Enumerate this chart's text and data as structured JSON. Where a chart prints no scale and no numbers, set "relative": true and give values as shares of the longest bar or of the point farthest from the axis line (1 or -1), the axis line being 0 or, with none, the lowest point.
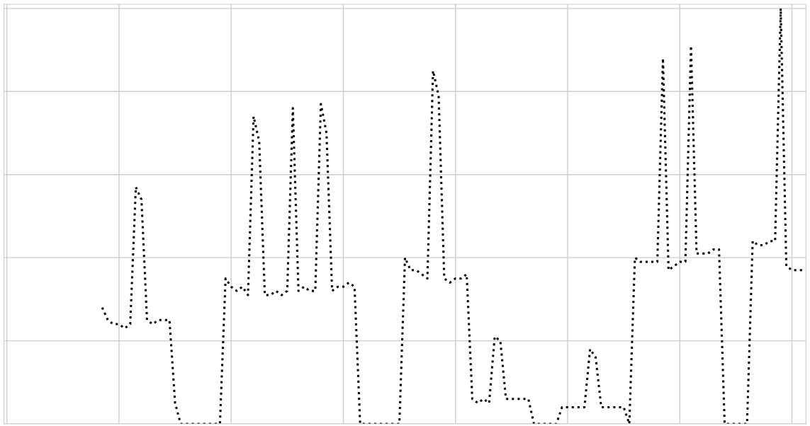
{
  "chart_data": {
    "type": "line",
    "relative": true,
    "grid": true,
    "line_style": "dotted",
    "marker": "none",
    "categories": [
      null,
      null,
      null,
      null,
      null,
      null,
      null,
      null,
      null,
      null,
      null,
      null,
      null,
      null,
      null,
      null,
      null,
      null,
      null,
      null,
      null,
      null,
      null,
      null,
      null,
      null,
      null,
      null,
      null,
      null,
      null,
      null,
      null,
      null,
      null,
      null,
      null,
      null,
      null,
      null,
      null,
      null,
      null,
      null,
      null,
      null,
      null,
      null,
      null,
      null,
      null,
      null,
      null,
      null,
      null,
      null,
      null,
      null,
      null,
      null,
      null,
      null,
      null,
      null,
      null,
      null,
      null,
      null,
      null,
      null,
      null,
      null,
      null,
      null,
      null,
      null,
      null,
      null,
      null,
      null,
      null,
      null,
      null,
      null,
      null,
      null,
      null,
      null,
      null,
      null,
      null,
      null,
      null,
      null,
      null,
      null,
      null,
      null,
      null,
      null,
      null,
      null,
      null,
      null,
      null,
      null,
      null,
      null,
      null,
      null,
      null,
      null,
      null,
      null,
      null,
      null,
      null,
      null,
      null,
      null,
      null,
      null,
      null,
      null,
      null,
      null,
      null,
      null,
      null,
      null,
      null,
      null,
      null,
      null,
      null,
      null,
      null,
      null,
      null,
      null,
      null,
      null,
      null
    ],
    "series": [
      {
        "color": "#000000",
        "values": [
          null,
          null,
          null,
          null,
          null,
          null,
          null,
          null,
          null,
          null,
          null,
          null,
          null,
          null,
          null,
          null,
          null,
          0.28,
          0.25,
          0.24,
          0.24,
          0.23,
          0.24,
          0.57,
          0.54,
          0.25,
          0.24,
          0.25,
          0.25,
          0.25,
          0.05,
          0,
          0,
          0,
          0,
          0,
          0,
          0,
          0,
          0.35,
          0.33,
          0.32,
          0.33,
          0.31,
          0.74,
          0.68,
          0.31,
          0.31,
          0.32,
          0.31,
          0.32,
          0.76,
          0.32,
          0.33,
          0.32,
          0.32,
          0.77,
          0.7,
          0.32,
          0.33,
          0.33,
          0.34,
          0.33,
          0,
          0,
          0,
          0,
          0,
          0,
          0,
          0,
          0.4,
          0.37,
          0.37,
          0.36,
          0.35,
          0.85,
          0.79,
          0.35,
          0.34,
          0.35,
          0.35,
          0.36,
          0.06,
          0.05,
          0.06,
          0.05,
          0.21,
          0.2,
          0.06,
          0.06,
          0.06,
          0.06,
          0.06,
          0,
          0,
          0,
          0,
          0,
          0.04,
          0.04,
          0.04,
          0.04,
          0.04,
          0.18,
          0.16,
          0.04,
          0.04,
          0.04,
          0.04,
          0.04,
          0,
          0.4,
          0.39,
          0.39,
          0.39,
          0.39,
          0.88,
          0.37,
          0.38,
          0.39,
          0.39,
          0.91,
          0.41,
          0.41,
          0.41,
          0.42,
          0.42,
          0,
          0,
          0,
          0,
          0,
          0.44,
          0.43,
          0.43,
          0.44,
          0.44,
          1.0,
          0.38,
          0.37,
          0.37,
          0.37
        ]
      }
    ]
  }
}
